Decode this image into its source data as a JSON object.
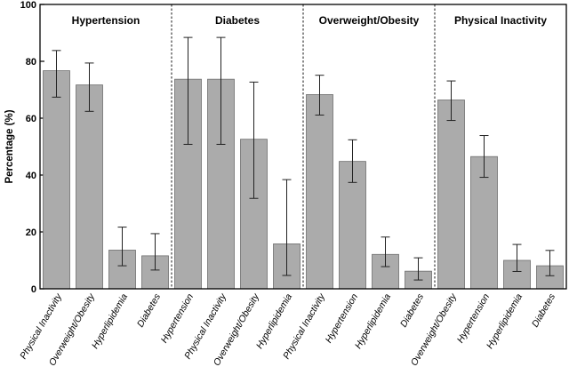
{
  "chart_data": {
    "type": "bar",
    "ylabel": "Percentage (%)",
    "ylim": [
      0,
      100
    ],
    "yticks": [
      "0",
      "20",
      "40",
      "60",
      "80",
      "100"
    ],
    "grid": false,
    "panels": [
      {
        "title": "Hypertension",
        "categories": [
          "Physical Inactivity",
          "Overweight/Obesity",
          "Hyperlipidemia",
          "Diabetes"
        ],
        "values": [
          76.7,
          71.7,
          13.6,
          11.6
        ],
        "error_low": [
          67.4,
          62.4,
          8.1,
          6.6
        ],
        "error_high": [
          83.8,
          79.4,
          21.7,
          19.4
        ]
      },
      {
        "title": "Diabetes",
        "categories": [
          "Hypertension",
          "Physical Inactivity",
          "Overweight/Obesity",
          "Hyperlipidemia"
        ],
        "values": [
          73.7,
          73.7,
          52.6,
          15.8
        ],
        "error_low": [
          50.8,
          50.8,
          31.8,
          4.7
        ],
        "error_high": [
          88.4,
          88.4,
          72.7,
          38.4
        ]
      },
      {
        "title": "Overweight/Obesity",
        "categories": [
          "Physical Inactivity",
          "Hypertension",
          "Hyperlipidemia",
          "Diabetes"
        ],
        "values": [
          68.3,
          44.8,
          12.1,
          6.2
        ],
        "error_low": [
          61.1,
          37.4,
          7.8,
          3.1
        ],
        "error_high": [
          75.1,
          52.4,
          18.2,
          10.9
        ]
      },
      {
        "title": "Physical Inactivity",
        "categories": [
          "Overweight/Obesity",
          "Hypertension",
          "Hyperlipidemia",
          "Diabetes"
        ],
        "values": [
          66.4,
          46.5,
          10.0,
          8.1
        ],
        "error_low": [
          59.2,
          39.2,
          6.1,
          4.6
        ],
        "error_high": [
          73.1,
          53.9,
          15.6,
          13.5
        ]
      }
    ]
  }
}
